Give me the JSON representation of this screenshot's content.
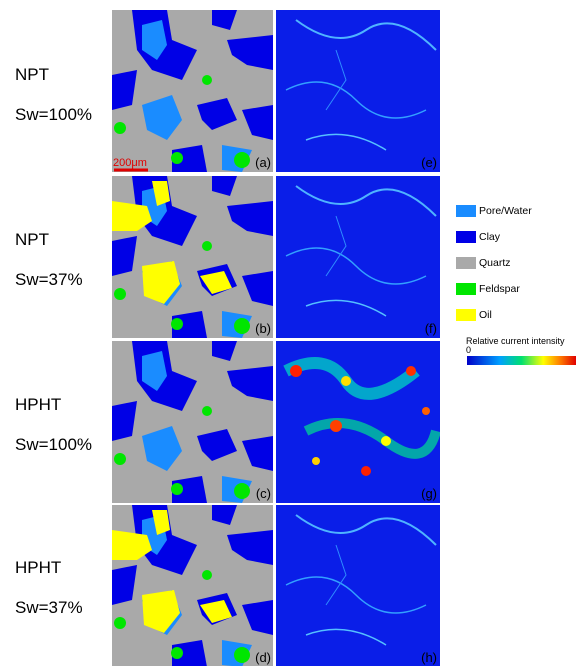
{
  "rows": [
    {
      "condition": "NPT",
      "saturation": "Sw=100%"
    },
    {
      "condition": "NPT",
      "saturation": "Sw=37%"
    },
    {
      "condition": "HPHT",
      "saturation": "Sw=100%"
    },
    {
      "condition": "HPHT",
      "saturation": "Sw=37%"
    }
  ],
  "panels": {
    "left": [
      "(a)",
      "(b)",
      "(c)",
      "(d)"
    ],
    "right": [
      "(e)",
      "(f)",
      "(g)",
      "(h)"
    ]
  },
  "scale_bar": "200μm",
  "legend": {
    "items": [
      {
        "label": "Pore/Water",
        "color": "#1a8cff"
      },
      {
        "label": "Clay",
        "color": "#0000e6"
      },
      {
        "label": "Quartz",
        "color": "#a9a9a9"
      },
      {
        "label": "Feldspar",
        "color": "#00e600"
      },
      {
        "label": "Oil",
        "color": "#ffff00"
      }
    ],
    "colorbar_title": "Relative current intensity",
    "colorbar_min": 0
  }
}
